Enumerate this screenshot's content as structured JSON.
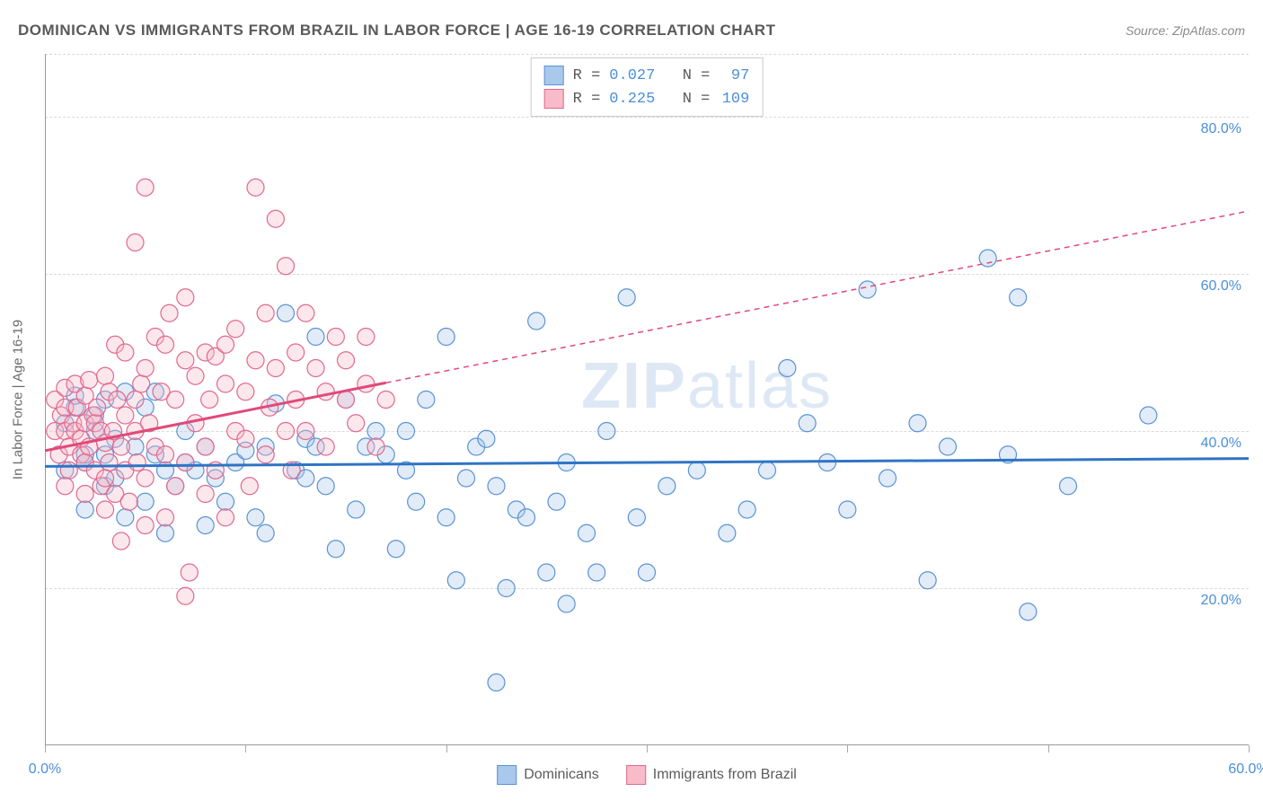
{
  "header": {
    "title": "DOMINICAN VS IMMIGRANTS FROM BRAZIL IN LABOR FORCE | AGE 16-19 CORRELATION CHART",
    "source": "Source: ZipAtlas.com"
  },
  "watermark": {
    "bold": "ZIP",
    "thin": "atlas"
  },
  "chart": {
    "type": "scatter",
    "background_color": "#ffffff",
    "grid_color": "#dadada",
    "axis_color": "#999999",
    "tick_label_color": "#4b8fd9",
    "ylabel": "In Labor Force | Age 16-19",
    "label_fontsize": 15,
    "label_color": "#6a6a6a",
    "xlim": [
      0,
      60
    ],
    "ylim": [
      0,
      88
    ],
    "x_tick_positions": [
      0,
      10,
      20,
      30,
      40,
      50,
      60
    ],
    "x_tick_labels": {
      "0": "0.0%",
      "60": "60.0%"
    },
    "y_grid_positions": [
      20,
      40,
      60,
      80,
      88
    ],
    "y_tick_labels": {
      "20": "20.0%",
      "40": "40.0%",
      "60": "60.0%",
      "80": "80.0%"
    },
    "marker_radius": 9.5,
    "marker_fill_opacity": 0.35,
    "marker_stroke_width": 1.2,
    "series": [
      {
        "name": "Dominicans",
        "color_fill": "#a8c8ec",
        "color_stroke": "#5b93d4",
        "R": "0.027",
        "N": "97",
        "regression": {
          "x1": 0,
          "y1": 35.5,
          "x2": 60,
          "y2": 36.5,
          "solid_until_x": 60,
          "stroke_width": 3,
          "color": "#2f74c4"
        },
        "points": [
          [
            1,
            41
          ],
          [
            1,
            35
          ],
          [
            1.5,
            43
          ],
          [
            1.5,
            44.5
          ],
          [
            2,
            30
          ],
          [
            2,
            36
          ],
          [
            2.5,
            42
          ],
          [
            2.5,
            40
          ],
          [
            3,
            37
          ],
          [
            3,
            33
          ],
          [
            3.5,
            39
          ],
          [
            3.5,
            34
          ],
          [
            4,
            45
          ],
          [
            4,
            29
          ],
          [
            4.5,
            38
          ],
          [
            5,
            43
          ],
          [
            5,
            31
          ],
          [
            5.5,
            37
          ],
          [
            5.5,
            45
          ],
          [
            6,
            35
          ],
          [
            6,
            27
          ],
          [
            6.5,
            33
          ],
          [
            7,
            36
          ],
          [
            7,
            40
          ],
          [
            7.5,
            35
          ],
          [
            8,
            38
          ],
          [
            8,
            28
          ],
          [
            8.5,
            34
          ],
          [
            9,
            31
          ],
          [
            9.5,
            36
          ],
          [
            10,
            37.5
          ],
          [
            10.5,
            29
          ],
          [
            11,
            38
          ],
          [
            11,
            27
          ],
          [
            11.5,
            43.5
          ],
          [
            12,
            55
          ],
          [
            12.5,
            35
          ],
          [
            13,
            34
          ],
          [
            13,
            39
          ],
          [
            13.5,
            52
          ],
          [
            13.5,
            38
          ],
          [
            14,
            33
          ],
          [
            14.5,
            25
          ],
          [
            15,
            44
          ],
          [
            15.5,
            30
          ],
          [
            16,
            38
          ],
          [
            16.5,
            40
          ],
          [
            17,
            37
          ],
          [
            17.5,
            25
          ],
          [
            18,
            40
          ],
          [
            18,
            35
          ],
          [
            18.5,
            31
          ],
          [
            19,
            44
          ],
          [
            20,
            52
          ],
          [
            20,
            29
          ],
          [
            20.5,
            21
          ],
          [
            21,
            34
          ],
          [
            21.5,
            38
          ],
          [
            22,
            39
          ],
          [
            22.5,
            33
          ],
          [
            22.5,
            8
          ],
          [
            23,
            20
          ],
          [
            23.5,
            30
          ],
          [
            24,
            29
          ],
          [
            24.5,
            54
          ],
          [
            25,
            22
          ],
          [
            25.5,
            31
          ],
          [
            26,
            36
          ],
          [
            26,
            18
          ],
          [
            27,
            27
          ],
          [
            27.5,
            22
          ],
          [
            28,
            40
          ],
          [
            29,
            57
          ],
          [
            29.5,
            29
          ],
          [
            30,
            22
          ],
          [
            31,
            33
          ],
          [
            32.5,
            35
          ],
          [
            34,
            27
          ],
          [
            35,
            30
          ],
          [
            36,
            35
          ],
          [
            37,
            48
          ],
          [
            38,
            41
          ],
          [
            39,
            36
          ],
          [
            40,
            30
          ],
          [
            41,
            58
          ],
          [
            42,
            34
          ],
          [
            43.5,
            41
          ],
          [
            44,
            21
          ],
          [
            45,
            38
          ],
          [
            47,
            62
          ],
          [
            48,
            37
          ],
          [
            48.5,
            57
          ],
          [
            49,
            17
          ],
          [
            51,
            33
          ],
          [
            55,
            42
          ],
          [
            2,
            37
          ],
          [
            3,
            44
          ]
        ]
      },
      {
        "name": "Immigrants from Brazil",
        "color_fill": "#f7bbc9",
        "color_stroke": "#e06990",
        "R": "0.225",
        "N": "109",
        "regression": {
          "x1": 0,
          "y1": 37.5,
          "x2": 60,
          "y2": 68,
          "solid_until_x": 17,
          "stroke_width": 3,
          "color": "#e04a7a"
        },
        "points": [
          [
            0.5,
            40
          ],
          [
            0.5,
            44
          ],
          [
            0.7,
            37
          ],
          [
            0.8,
            42
          ],
          [
            1,
            40
          ],
          [
            1,
            43
          ],
          [
            1,
            45.5
          ],
          [
            1.2,
            38
          ],
          [
            1.2,
            35
          ],
          [
            1.4,
            41
          ],
          [
            1.5,
            46
          ],
          [
            1.5,
            40
          ],
          [
            1.6,
            43
          ],
          [
            1.8,
            37
          ],
          [
            1.8,
            39
          ],
          [
            2,
            44.5
          ],
          [
            2,
            36
          ],
          [
            2,
            41
          ],
          [
            2.2,
            46.5
          ],
          [
            2.2,
            38
          ],
          [
            2.4,
            42
          ],
          [
            2.5,
            41
          ],
          [
            2.5,
            35
          ],
          [
            2.6,
            43
          ],
          [
            2.8,
            40
          ],
          [
            2.8,
            33
          ],
          [
            3,
            47
          ],
          [
            3,
            38.5
          ],
          [
            3,
            30
          ],
          [
            3.2,
            45
          ],
          [
            3.2,
            36
          ],
          [
            3.4,
            40
          ],
          [
            3.5,
            51
          ],
          [
            3.5,
            32
          ],
          [
            3.6,
            44
          ],
          [
            3.8,
            38
          ],
          [
            3.8,
            26
          ],
          [
            4,
            50
          ],
          [
            4,
            35
          ],
          [
            4,
            42
          ],
          [
            4.2,
            31
          ],
          [
            4.5,
            64
          ],
          [
            4.5,
            40
          ],
          [
            4.6,
            36
          ],
          [
            4.8,
            46
          ],
          [
            5,
            71
          ],
          [
            5,
            48
          ],
          [
            5,
            34
          ],
          [
            5,
            28
          ],
          [
            5.2,
            41
          ],
          [
            5.5,
            38
          ],
          [
            5.5,
            52
          ],
          [
            5.8,
            45
          ],
          [
            6,
            51
          ],
          [
            6,
            37
          ],
          [
            6,
            29
          ],
          [
            6.2,
            55
          ],
          [
            6.5,
            44
          ],
          [
            6.5,
            33
          ],
          [
            7,
            49
          ],
          [
            7,
            57
          ],
          [
            7,
            36
          ],
          [
            7.2,
            22
          ],
          [
            7.5,
            47
          ],
          [
            7.5,
            41
          ],
          [
            8,
            50
          ],
          [
            8,
            32
          ],
          [
            8,
            38
          ],
          [
            8.2,
            44
          ],
          [
            8.5,
            49.5
          ],
          [
            8.5,
            35
          ],
          [
            9,
            51
          ],
          [
            9,
            46
          ],
          [
            9,
            29
          ],
          [
            9.5,
            40
          ],
          [
            9.5,
            53
          ],
          [
            10,
            39
          ],
          [
            10,
            45
          ],
          [
            10.2,
            33
          ],
          [
            10.5,
            71
          ],
          [
            10.5,
            49
          ],
          [
            11,
            37
          ],
          [
            11,
            55
          ],
          [
            11.2,
            43
          ],
          [
            11.5,
            67
          ],
          [
            11.5,
            48
          ],
          [
            12,
            40
          ],
          [
            12,
            61
          ],
          [
            12.3,
            35
          ],
          [
            12.5,
            50
          ],
          [
            12.5,
            44
          ],
          [
            13,
            55
          ],
          [
            13,
            40
          ],
          [
            13.5,
            48
          ],
          [
            14,
            45
          ],
          [
            14,
            38
          ],
          [
            14.5,
            52
          ],
          [
            15,
            44
          ],
          [
            15,
            49
          ],
          [
            15.5,
            41
          ],
          [
            16,
            46
          ],
          [
            16,
            52
          ],
          [
            16.5,
            38
          ],
          [
            17,
            44
          ],
          [
            1,
            33
          ],
          [
            2,
            32
          ],
          [
            3,
            34
          ],
          [
            4.5,
            44
          ],
          [
            7,
            19
          ]
        ]
      }
    ],
    "legend_bottom": [
      {
        "label": "Dominicans",
        "fill": "#a8c8ec",
        "stroke": "#5b93d4"
      },
      {
        "label": "Immigrants from Brazil",
        "fill": "#f7bbc9",
        "stroke": "#e06990"
      }
    ]
  }
}
